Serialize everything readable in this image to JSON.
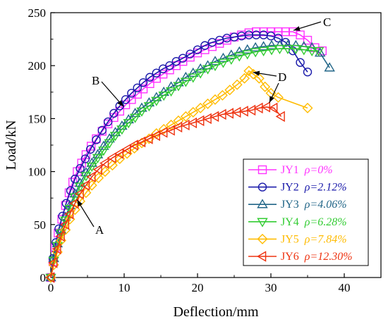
{
  "chart_data": {
    "type": "scatter",
    "xlabel": "Deflection/mm",
    "ylabel": "Load/kN",
    "xlim": [
      0,
      45
    ],
    "ylim": [
      0,
      250
    ],
    "xticks": [
      "0",
      "10",
      "20",
      "30",
      "40"
    ],
    "yticks": [
      "0",
      "50",
      "100",
      "150",
      "200",
      "250"
    ],
    "legend_position": "bottom-right",
    "series": [
      {
        "name": "JY1",
        "rho": "ρ=0%",
        "color": "#ff33ff",
        "marker": "square",
        "points": [
          [
            0,
            0
          ],
          [
            0.3,
            15
          ],
          [
            0.6,
            28
          ],
          [
            1,
            42
          ],
          [
            1.5,
            55
          ],
          [
            2,
            68
          ],
          [
            2.5,
            80
          ],
          [
            3,
            90
          ],
          [
            3.6,
            100
          ],
          [
            4.2,
            108
          ],
          [
            4.8,
            116
          ],
          [
            5.5,
            124
          ],
          [
            6.2,
            131
          ],
          [
            7,
            138
          ],
          [
            7.8,
            145
          ],
          [
            8.6,
            151
          ],
          [
            9.4,
            157
          ],
          [
            10.2,
            163
          ],
          [
            11,
            168
          ],
          [
            11.8,
            173
          ],
          [
            12.6,
            178
          ],
          [
            13.5,
            183
          ],
          [
            14.4,
            188
          ],
          [
            15.3,
            192
          ],
          [
            16.2,
            196
          ],
          [
            17.1,
            200
          ],
          [
            18,
            204
          ],
          [
            19,
            208
          ],
          [
            20,
            212
          ],
          [
            21,
            215
          ],
          [
            22,
            218
          ],
          [
            23,
            221
          ],
          [
            24,
            224
          ],
          [
            25,
            227
          ],
          [
            26,
            229
          ],
          [
            27,
            231
          ],
          [
            28,
            232
          ],
          [
            29,
            232
          ],
          [
            30,
            232
          ],
          [
            31,
            232
          ],
          [
            32,
            232
          ],
          [
            33,
            232
          ],
          [
            34,
            229
          ],
          [
            35,
            224
          ],
          [
            36,
            217
          ],
          [
            37,
            214
          ]
        ]
      },
      {
        "name": "JY2",
        "rho": "ρ=2.12%",
        "color": "#1a1aaa",
        "marker": "circle",
        "points": [
          [
            0,
            0
          ],
          [
            0.3,
            18
          ],
          [
            0.7,
            33
          ],
          [
            1.1,
            46
          ],
          [
            1.6,
            58
          ],
          [
            2.1,
            70
          ],
          [
            2.7,
            82
          ],
          [
            3.3,
            93
          ],
          [
            4,
            103
          ],
          [
            4.7,
            112
          ],
          [
            5.4,
            121
          ],
          [
            6.2,
            130
          ],
          [
            7,
            139
          ],
          [
            7.8,
            147
          ],
          [
            8.6,
            155
          ],
          [
            9.4,
            162
          ],
          [
            10.2,
            168
          ],
          [
            11,
            174
          ],
          [
            11.8,
            179
          ],
          [
            12.6,
            184
          ],
          [
            13.5,
            189
          ],
          [
            14.4,
            193
          ],
          [
            15.3,
            197
          ],
          [
            16.2,
            200
          ],
          [
            17.1,
            204
          ],
          [
            18,
            207
          ],
          [
            19,
            211
          ],
          [
            20,
            215
          ],
          [
            21,
            219
          ],
          [
            22,
            222
          ],
          [
            23,
            224
          ],
          [
            24,
            226
          ],
          [
            25,
            227
          ],
          [
            26,
            228
          ],
          [
            27,
            229
          ],
          [
            28,
            229
          ],
          [
            29,
            229
          ],
          [
            30,
            228
          ],
          [
            31,
            226
          ],
          [
            32,
            222
          ],
          [
            33,
            214
          ],
          [
            34,
            203
          ],
          [
            35,
            194
          ]
        ]
      },
      {
        "name": "JY3",
        "rho": "ρ=4.06%",
        "color": "#226688",
        "marker": "triangle-up",
        "points": [
          [
            0,
            0
          ],
          [
            0.4,
            18
          ],
          [
            0.9,
            32
          ],
          [
            1.4,
            45
          ],
          [
            2,
            57
          ],
          [
            2.6,
            68
          ],
          [
            3.3,
            79
          ],
          [
            4,
            89
          ],
          [
            4.8,
            99
          ],
          [
            5.6,
            108
          ],
          [
            6.4,
            116
          ],
          [
            7.2,
            124
          ],
          [
            8,
            131
          ],
          [
            8.8,
            137
          ],
          [
            9.7,
            143
          ],
          [
            10.6,
            149
          ],
          [
            11.5,
            155
          ],
          [
            12.4,
            160
          ],
          [
            13.4,
            165
          ],
          [
            14.4,
            170
          ],
          [
            15.4,
            175
          ],
          [
            16.4,
            180
          ],
          [
            17.4,
            184
          ],
          [
            18.4,
            189
          ],
          [
            19.4,
            193
          ],
          [
            20.4,
            197
          ],
          [
            21.4,
            200
          ],
          [
            22.4,
            204
          ],
          [
            23.5,
            207
          ],
          [
            24.6,
            210
          ],
          [
            25.7,
            213
          ],
          [
            26.8,
            215
          ],
          [
            27.9,
            217
          ],
          [
            29,
            218
          ],
          [
            30.1,
            219
          ],
          [
            31.2,
            219
          ],
          [
            32.3,
            219
          ],
          [
            33.4,
            219
          ],
          [
            34.5,
            218
          ],
          [
            35.6,
            217
          ],
          [
            36.7,
            212
          ],
          [
            38,
            198
          ]
        ]
      },
      {
        "name": "JY4",
        "rho": "ρ=6.28%",
        "color": "#33cc33",
        "marker": "triangle-down",
        "points": [
          [
            0,
            0
          ],
          [
            0.4,
            16
          ],
          [
            0.9,
            30
          ],
          [
            1.4,
            42
          ],
          [
            2,
            54
          ],
          [
            2.6,
            65
          ],
          [
            3.3,
            76
          ],
          [
            4,
            86
          ],
          [
            4.8,
            96
          ],
          [
            5.6,
            105
          ],
          [
            6.4,
            113
          ],
          [
            7.2,
            120
          ],
          [
            8,
            127
          ],
          [
            8.8,
            134
          ],
          [
            9.7,
            140
          ],
          [
            10.6,
            146
          ],
          [
            11.5,
            151
          ],
          [
            12.4,
            157
          ],
          [
            13.4,
            162
          ],
          [
            14.4,
            167
          ],
          [
            15.4,
            172
          ],
          [
            16.4,
            176
          ],
          [
            17.4,
            181
          ],
          [
            18.4,
            185
          ],
          [
            19.4,
            189
          ],
          [
            20.4,
            193
          ],
          [
            21.4,
            197
          ],
          [
            22.4,
            200
          ],
          [
            23.5,
            203
          ],
          [
            24.6,
            206
          ],
          [
            25.7,
            209
          ],
          [
            26.8,
            211
          ],
          [
            27.9,
            213
          ],
          [
            29,
            214
          ],
          [
            30.1,
            215
          ],
          [
            31.2,
            216
          ],
          [
            32.3,
            216
          ],
          [
            33.4,
            216
          ],
          [
            34.5,
            215
          ],
          [
            35.6,
            214
          ],
          [
            36.5,
            214
          ]
        ]
      },
      {
        "name": "JY5",
        "rho": "ρ=7.84%",
        "color": "#ffbb00",
        "marker": "diamond",
        "points": [
          [
            0,
            0
          ],
          [
            0.4,
            12
          ],
          [
            0.9,
            24
          ],
          [
            1.4,
            35
          ],
          [
            2,
            45
          ],
          [
            2.6,
            55
          ],
          [
            3.3,
            64
          ],
          [
            4,
            72
          ],
          [
            4.8,
            80
          ],
          [
            5.6,
            87
          ],
          [
            6.5,
            94
          ],
          [
            7.4,
            100
          ],
          [
            8.4,
            106
          ],
          [
            9.4,
            112
          ],
          [
            10.4,
            117
          ],
          [
            11.4,
            122
          ],
          [
            12.4,
            127
          ],
          [
            13.4,
            131
          ],
          [
            14.4,
            136
          ],
          [
            15.4,
            140
          ],
          [
            16.4,
            144
          ],
          [
            17.4,
            148
          ],
          [
            18.4,
            152
          ],
          [
            19.4,
            156
          ],
          [
            20.4,
            160
          ],
          [
            21.4,
            164
          ],
          [
            22.4,
            168
          ],
          [
            23.4,
            172
          ],
          [
            24.4,
            177
          ],
          [
            25.4,
            182
          ],
          [
            26.4,
            188
          ],
          [
            27,
            195
          ],
          [
            27.6,
            192
          ],
          [
            28.4,
            188
          ],
          [
            29.2,
            180
          ],
          [
            30,
            174
          ],
          [
            31,
            170
          ],
          [
            35,
            160
          ]
        ]
      },
      {
        "name": "JY6",
        "rho": "ρ=12.30%",
        "color": "#ee3311",
        "marker": "triangle-left",
        "points": [
          [
            0,
            0
          ],
          [
            0.4,
            14
          ],
          [
            0.9,
            27
          ],
          [
            1.4,
            39
          ],
          [
            2,
            50
          ],
          [
            2.6,
            60
          ],
          [
            3.3,
            70
          ],
          [
            4,
            79
          ],
          [
            4.8,
            87
          ],
          [
            5.6,
            95
          ],
          [
            6.5,
            102
          ],
          [
            7.4,
            108
          ],
          [
            8.4,
            113
          ],
          [
            9.4,
            117
          ],
          [
            10.4,
            121
          ],
          [
            11.4,
            125
          ],
          [
            12.4,
            128
          ],
          [
            13.4,
            131
          ],
          [
            14.4,
            134
          ],
          [
            15.4,
            137
          ],
          [
            16.4,
            139
          ],
          [
            17.4,
            142
          ],
          [
            18.4,
            144
          ],
          [
            19.4,
            146
          ],
          [
            20.4,
            148
          ],
          [
            21.4,
            150
          ],
          [
            22.4,
            152
          ],
          [
            23.4,
            154
          ],
          [
            24.4,
            155
          ],
          [
            25.4,
            156
          ],
          [
            26.4,
            157
          ],
          [
            27.4,
            158
          ],
          [
            28.4,
            160
          ],
          [
            29.4,
            161
          ],
          [
            30.4,
            160
          ],
          [
            31.4,
            152
          ]
        ]
      }
    ],
    "annotations": [
      {
        "label": "A",
        "x": 3.2,
        "y": 76
      },
      {
        "label": "B",
        "x": 10.2,
        "y": 160
      },
      {
        "label": "C",
        "x": 32.5,
        "y": 232
      },
      {
        "label": "D",
        "x": 27,
        "y": 195
      },
      {
        "label": "D",
        "x": 29.4,
        "y": 161
      }
    ]
  }
}
